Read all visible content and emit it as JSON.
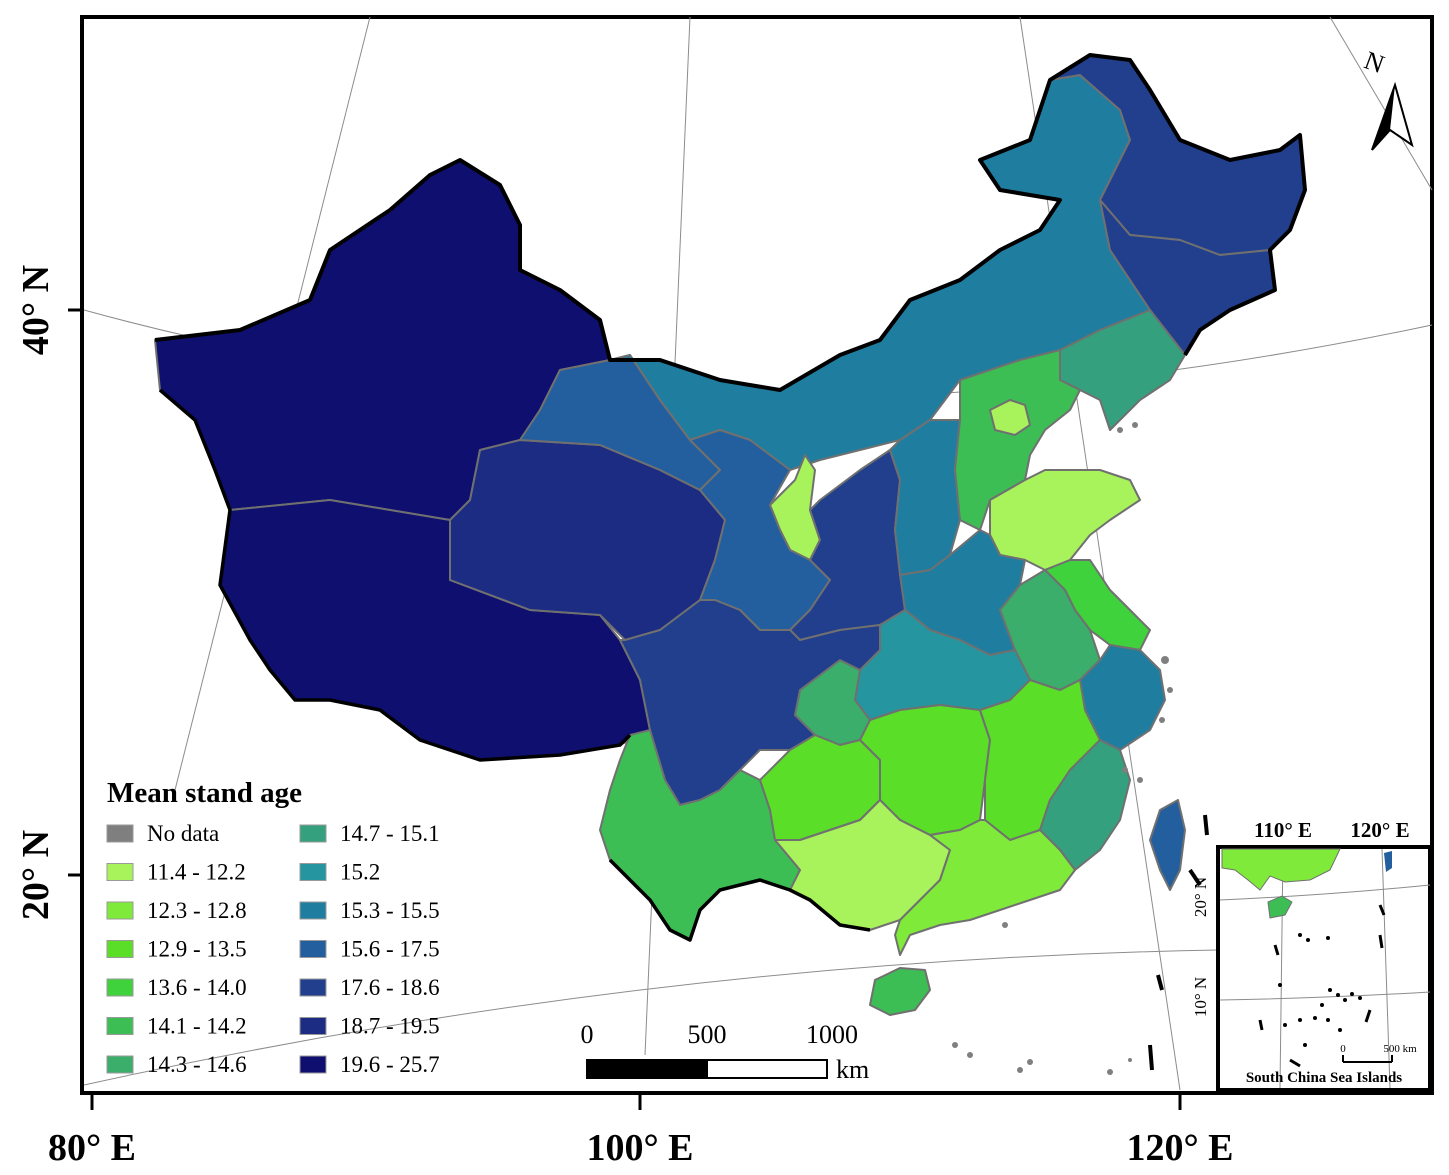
{
  "legend": {
    "title": "Mean stand age",
    "items": [
      {
        "label": "No data",
        "color": "#7f7f7f"
      },
      {
        "label": "11.4 - 12.2",
        "color": "#a8f25c"
      },
      {
        "label": "12.3 - 12.8",
        "color": "#80ea3a"
      },
      {
        "label": "12.9 - 13.5",
        "color": "#5ade27"
      },
      {
        "label": "13.6 - 14.0",
        "color": "#3fd23c"
      },
      {
        "label": "14.1 - 14.2",
        "color": "#3dbe55"
      },
      {
        "label": "14.3 - 14.6",
        "color": "#3aae6a"
      },
      {
        "label": "14.7 - 15.1",
        "color": "#34a07e"
      },
      {
        "label": "15.2",
        "color": "#2596a0"
      },
      {
        "label": "15.3 - 15.5",
        "color": "#1f7ea0"
      },
      {
        "label": "15.6 - 17.5",
        "color": "#235f9e"
      },
      {
        "label": "17.6 - 18.6",
        "color": "#213f8c"
      },
      {
        "label": "18.7 - 19.5",
        "color": "#1c2c82"
      },
      {
        "label": "19.6 - 25.7",
        "color": "#0e0f6e"
      }
    ]
  },
  "axes": {
    "x_labels": [
      "80° E",
      "100° E",
      "120° E"
    ],
    "y_labels": [
      "40° N",
      "20° N"
    ]
  },
  "scale_bar": {
    "ticks": [
      "0",
      "500",
      "1000"
    ],
    "unit": "km"
  },
  "north_arrow": {
    "label": "N"
  },
  "inset": {
    "title": "South China Sea Islands",
    "x_labels": [
      "110° E",
      "120° E"
    ],
    "y_labels": [
      "20° N",
      "10° N"
    ],
    "scale_ticks": [
      "0",
      "500 km"
    ]
  },
  "regions": [
    {
      "name": "Xinjiang",
      "class": "19.6 - 25.7"
    },
    {
      "name": "Tibet",
      "class": "19.6 - 25.7"
    },
    {
      "name": "Qinghai",
      "class": "18.7 - 19.5"
    },
    {
      "name": "Gansu West",
      "class": "15.6 - 17.5"
    },
    {
      "name": "Inner Mongolia",
      "class": "15.3 - 15.5"
    },
    {
      "name": "Heilongjiang",
      "class": "17.6 - 18.6"
    },
    {
      "name": "Jilin",
      "class": "17.6 - 18.6"
    },
    {
      "name": "Liaoning",
      "class": "14.7 - 15.1"
    },
    {
      "name": "Ningxia",
      "class": "11.4 - 12.2"
    },
    {
      "name": "Gansu East",
      "class": "15.6 - 17.5"
    },
    {
      "name": "Shaanxi",
      "class": "17.6 - 18.6"
    },
    {
      "name": "Shanxi",
      "class": "15.3 - 15.5"
    },
    {
      "name": "Hebei",
      "class": "14.1 - 14.2"
    },
    {
      "name": "Beijing",
      "class": "11.4 - 12.2"
    },
    {
      "name": "Shandong",
      "class": "11.4 - 12.2"
    },
    {
      "name": "Henan",
      "class": "15.3 - 15.5"
    },
    {
      "name": "Jiangsu",
      "class": "13.6 - 14.0"
    },
    {
      "name": "Anhui",
      "class": "14.3 - 14.6"
    },
    {
      "name": "Zhejiang",
      "class": "15.3 - 15.5"
    },
    {
      "name": "Hubei",
      "class": "15.2"
    },
    {
      "name": "Chongqing",
      "class": "14.3 - 14.6"
    },
    {
      "name": "Sichuan",
      "class": "17.6 - 18.6"
    },
    {
      "name": "Yunnan",
      "class": "14.1 - 14.2"
    },
    {
      "name": "Guizhou",
      "class": "12.9 - 13.5"
    },
    {
      "name": "Hunan",
      "class": "12.9 - 13.5"
    },
    {
      "name": "Jiangxi",
      "class": "12.9 - 13.5"
    },
    {
      "name": "Fujian",
      "class": "14.7 - 15.1"
    },
    {
      "name": "Guangxi",
      "class": "11.4 - 12.2"
    },
    {
      "name": "Guangdong",
      "class": "12.3 - 12.8"
    },
    {
      "name": "Hainan",
      "class": "14.1 - 14.2"
    },
    {
      "name": "Taiwan",
      "class": "15.6 - 17.5"
    }
  ]
}
